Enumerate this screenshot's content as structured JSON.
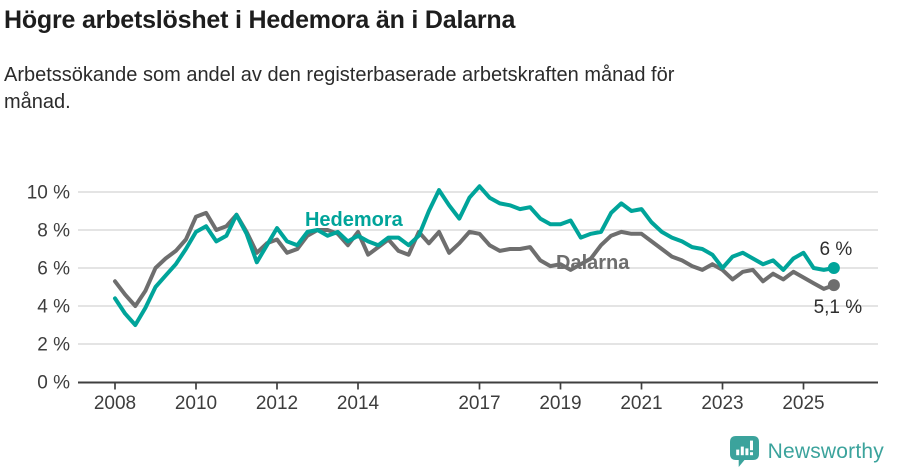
{
  "header": {
    "title": "Högre arbetslöshet i Hedemora än i Dalarna",
    "subtitle": "Arbetssökande som andel av den registerbaserade arbetskraften månad för månad."
  },
  "chart_data": {
    "type": "line",
    "x_start": 2008.0,
    "x_step": 0.25,
    "x_ticks": [
      2008,
      2010,
      2012,
      2014,
      2017,
      2019,
      2021,
      2023,
      2025
    ],
    "y_ticks": [
      0,
      2,
      4,
      6,
      8,
      10
    ],
    "y_tick_suffix": " %",
    "ylim": [
      0,
      10.5
    ],
    "grid": "horizontal",
    "colors": {
      "grid": "#DBDBDB",
      "axis": "#3F3F3F",
      "tick_label": "#3D3D3D",
      "end_label": "#2E2E2E"
    },
    "series": [
      {
        "name": "Dalarna",
        "color": "#6E6E6E",
        "label_pos": {
          "x": 2018.89,
          "y": 5.95
        },
        "end_label": "5,1 %",
        "end_label_side": "below",
        "last_value": 5.1,
        "values": [
          5.3,
          4.6,
          4.0,
          4.8,
          6.0,
          6.5,
          6.9,
          7.5,
          8.7,
          8.9,
          8.0,
          8.2,
          8.8,
          7.9,
          6.8,
          7.3,
          7.5,
          6.8,
          7.0,
          7.7,
          8.0,
          8.0,
          7.8,
          7.2,
          7.9,
          6.7,
          7.1,
          7.5,
          6.9,
          6.7,
          7.9,
          7.3,
          7.9,
          6.8,
          7.3,
          7.9,
          7.8,
          7.2,
          6.9,
          7.0,
          7.0,
          7.1,
          6.4,
          6.1,
          6.2,
          5.9,
          6.2,
          6.5,
          7.2,
          7.7,
          7.9,
          7.8,
          7.8,
          7.4,
          7.0,
          6.6,
          6.4,
          6.1,
          5.9,
          6.2,
          5.9,
          5.4,
          5.8,
          5.9,
          5.3,
          5.7,
          5.4,
          5.8,
          5.5,
          5.2,
          4.9,
          5.1
        ]
      },
      {
        "name": "Hedemora",
        "color": "#00A49A",
        "label_pos": {
          "x": 2012.69,
          "y": 8.2
        },
        "end_label": "6 %",
        "end_label_side": "above",
        "last_value": 6.0,
        "values": [
          4.4,
          3.6,
          3.0,
          3.9,
          5.0,
          5.6,
          6.2,
          7.0,
          7.9,
          8.2,
          7.4,
          7.7,
          8.8,
          7.8,
          6.3,
          7.2,
          8.1,
          7.4,
          7.2,
          7.9,
          8.0,
          7.7,
          7.9,
          7.4,
          7.7,
          7.4,
          7.2,
          7.6,
          7.6,
          7.2,
          7.7,
          9.0,
          10.1,
          9.3,
          8.6,
          9.7,
          10.3,
          9.7,
          9.4,
          9.3,
          9.1,
          9.2,
          8.6,
          8.3,
          8.3,
          8.5,
          7.6,
          7.8,
          7.9,
          8.9,
          9.4,
          9.0,
          9.1,
          8.4,
          7.9,
          7.6,
          7.4,
          7.1,
          7.0,
          6.7,
          6.0,
          6.6,
          6.8,
          6.5,
          6.2,
          6.4,
          5.9,
          6.5,
          6.8,
          6.0,
          5.9,
          6.0
        ]
      }
    ]
  },
  "footer": {
    "brand": "Newsworthy",
    "logo_icon": "newsworthy-bubble-barchart-icon",
    "logo_color": "#3BA39C"
  }
}
